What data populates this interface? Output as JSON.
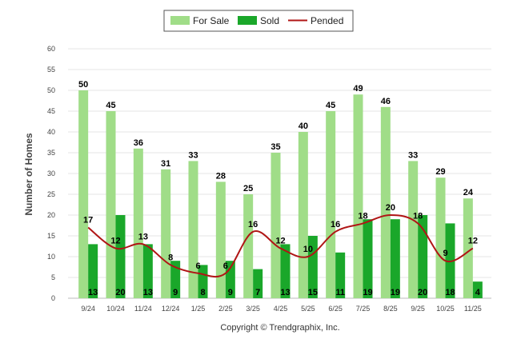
{
  "chart_data": {
    "type": "bar",
    "ylabel": "Number of Homes",
    "xlabel": "",
    "ylim": [
      0,
      60
    ],
    "yticks": [
      0,
      5,
      10,
      15,
      20,
      25,
      30,
      35,
      40,
      45,
      50,
      55,
      60
    ],
    "grid": true,
    "legend": "top-center",
    "categories": [
      "9/24",
      "10/24",
      "11/24",
      "12/24",
      "1/25",
      "2/25",
      "3/25",
      "4/25",
      "5/25",
      "6/25",
      "7/25",
      "8/25",
      "9/25",
      "10/25",
      "11/25"
    ],
    "series": [
      {
        "name": "For Sale",
        "kind": "bar",
        "color": "#a0dd88",
        "values": [
          50,
          45,
          36,
          31,
          33,
          28,
          25,
          35,
          40,
          45,
          49,
          46,
          33,
          29,
          24
        ]
      },
      {
        "name": "Sold",
        "kind": "bar",
        "color": "#1aa72a",
        "values": [
          13,
          20,
          13,
          9,
          8,
          9,
          7,
          13,
          15,
          11,
          19,
          19,
          20,
          18,
          4
        ]
      },
      {
        "name": "Pended",
        "kind": "line",
        "color": "#b01515",
        "values": [
          17,
          12,
          13,
          8,
          6,
          6,
          16,
          12,
          10,
          16,
          18,
          20,
          18,
          9,
          12
        ]
      }
    ]
  },
  "copyright": "Copyright © Trendgraphix, Inc."
}
